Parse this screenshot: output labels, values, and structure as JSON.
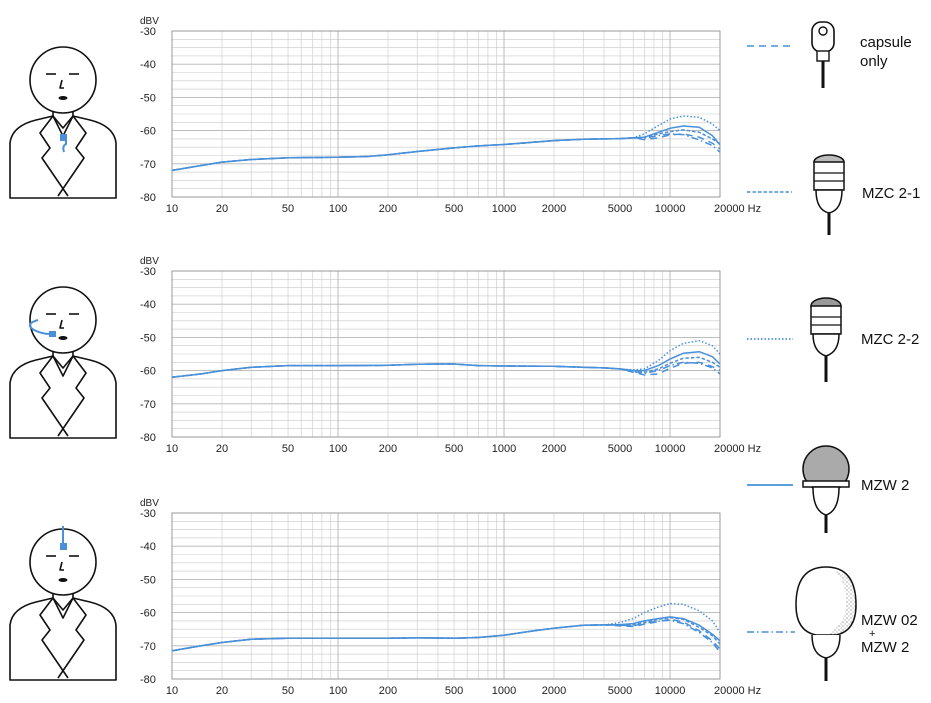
{
  "colors": {
    "curve": "#4a90d9",
    "grid": "#c9c9c9",
    "frame": "#9a9a9a",
    "ink": "#111111"
  },
  "axis": {
    "y_unit": "dBV",
    "x_unit": "Hz",
    "x_ticks": [
      10,
      20,
      50,
      100,
      200,
      500,
      1000,
      2000,
      5000,
      10000,
      20000
    ],
    "x_tick_labels": [
      "10",
      "20",
      "50",
      "100",
      "200",
      "500",
      "1000",
      "2000",
      "5000",
      "10000",
      "20000 Hz"
    ],
    "y_tick_labels": [
      "-30",
      "-40",
      "-50",
      "-60",
      "-70",
      "-80"
    ]
  },
  "legend": [
    {
      "name": "capsule_only",
      "label_lines": [
        "capsule",
        "only"
      ],
      "dash": "dashed",
      "icon": "lavalier-capsule-icon"
    },
    {
      "name": "mzc_2_1",
      "label_lines": [
        "MZC 2-1"
      ],
      "dash": "short-dashed",
      "icon": "mzc-2-1-cap-icon"
    },
    {
      "name": "mzc_2_2",
      "label_lines": [
        "MZC 2-2"
      ],
      "dash": "dotted",
      "icon": "mzc-2-2-cap-icon"
    },
    {
      "name": "mzw_2",
      "label_lines": [
        "MZW 2"
      ],
      "dash": "solid",
      "icon": "mzw-2-windshield-icon"
    },
    {
      "name": "mzw_02_mzw_2",
      "label_lines": [
        "MZW 02",
        "+",
        "MZW 2"
      ],
      "dash": "dash-dot",
      "icon": "mzw-02-fur-windshield-icon"
    }
  ],
  "chart_data": [
    {
      "type": "line",
      "placement": "chest",
      "xscale": "log",
      "xlim": [
        10,
        20000
      ],
      "ylim": [
        -80,
        -30
      ],
      "ylabel": "dBV",
      "xlabel": "Hz",
      "grid": true,
      "base": [
        [
          10,
          -72
        ],
        [
          15,
          -70.5
        ],
        [
          20,
          -69.5
        ],
        [
          30,
          -68.7
        ],
        [
          50,
          -68.2
        ],
        [
          100,
          -68
        ],
        [
          150,
          -67.8
        ],
        [
          200,
          -67.3
        ],
        [
          300,
          -66.3
        ],
        [
          500,
          -65.2
        ],
        [
          700,
          -64.6
        ],
        [
          1000,
          -64.2
        ],
        [
          2000,
          -63
        ],
        [
          3000,
          -62.6
        ],
        [
          5000,
          -62.4
        ],
        [
          6000,
          -62.2
        ]
      ],
      "series": [
        {
          "name": "capsule only",
          "style": "dashed",
          "values": [
            [
              7000,
              -62.7
            ],
            [
              8500,
              -62.2
            ],
            [
              10000,
              -61.3
            ],
            [
              12000,
              -61
            ],
            [
              15000,
              -62
            ],
            [
              18000,
              -63.8
            ],
            [
              20000,
              -65.5
            ]
          ]
        },
        {
          "name": "MZC 2-1",
          "style": "short-dashed",
          "values": [
            [
              7000,
              -62
            ],
            [
              8500,
              -61
            ],
            [
              10000,
              -60.3
            ],
            [
              12000,
              -59.8
            ],
            [
              15000,
              -60.5
            ],
            [
              18000,
              -62.5
            ],
            [
              20000,
              -64
            ]
          ]
        },
        {
          "name": "MZC 2-2",
          "style": "dotted",
          "values": [
            [
              7000,
              -61
            ],
            [
              8500,
              -58.5
            ],
            [
              10000,
              -56.5
            ],
            [
              12000,
              -55.6
            ],
            [
              15000,
              -56
            ],
            [
              18000,
              -58
            ],
            [
              20000,
              -60
            ]
          ]
        },
        {
          "name": "MZW 2",
          "style": "solid",
          "values": [
            [
              7000,
              -62
            ],
            [
              8500,
              -60.5
            ],
            [
              10000,
              -59.3
            ],
            [
              12000,
              -58.6
            ],
            [
              15000,
              -59
            ],
            [
              18000,
              -61.5
            ],
            [
              20000,
              -64.3
            ]
          ]
        },
        {
          "name": "MZW 02 + MZW 2",
          "style": "dash-dot",
          "values": [
            [
              7000,
              -62.3
            ],
            [
              8500,
              -61.5
            ],
            [
              10000,
              -61
            ],
            [
              12000,
              -61.2
            ],
            [
              15000,
              -62.8
            ],
            [
              18000,
              -64.5
            ],
            [
              20000,
              -66.5
            ]
          ]
        }
      ]
    },
    {
      "type": "line",
      "placement": "cheek",
      "xscale": "log",
      "xlim": [
        10,
        20000
      ],
      "ylim": [
        -80,
        -30
      ],
      "ylabel": "dBV",
      "xlabel": "Hz",
      "grid": true,
      "base": [
        [
          10,
          -62
        ],
        [
          15,
          -61
        ],
        [
          20,
          -60
        ],
        [
          30,
          -59
        ],
        [
          50,
          -58.5
        ],
        [
          100,
          -58.5
        ],
        [
          200,
          -58.4
        ],
        [
          300,
          -58.1
        ],
        [
          400,
          -58
        ],
        [
          500,
          -58
        ],
        [
          700,
          -58.5
        ],
        [
          1000,
          -58.6
        ],
        [
          2000,
          -58.7
        ],
        [
          3000,
          -59
        ],
        [
          4000,
          -59.2
        ],
        [
          5000,
          -59.5
        ]
      ],
      "series": [
        {
          "name": "capsule only",
          "style": "dashed",
          "values": [
            [
              6000,
              -60.5
            ],
            [
              7000,
              -61.3
            ],
            [
              8500,
              -61
            ],
            [
              10000,
              -59.3
            ],
            [
              12000,
              -57.8
            ],
            [
              15000,
              -57.5
            ],
            [
              18000,
              -58.8
            ],
            [
              20000,
              -60
            ]
          ]
        },
        {
          "name": "MZC 2-1",
          "style": "short-dashed",
          "values": [
            [
              6000,
              -60
            ],
            [
              7000,
              -60.5
            ],
            [
              8500,
              -59.5
            ],
            [
              10000,
              -57.8
            ],
            [
              12000,
              -56.3
            ],
            [
              15000,
              -56
            ],
            [
              18000,
              -57.5
            ],
            [
              20000,
              -59
            ]
          ]
        },
        {
          "name": "MZC 2-2",
          "style": "dotted",
          "values": [
            [
              6000,
              -59.8
            ],
            [
              7000,
              -59.5
            ],
            [
              8500,
              -57
            ],
            [
              10000,
              -54
            ],
            [
              12000,
              -51.8
            ],
            [
              15000,
              -51
            ],
            [
              18000,
              -52.5
            ],
            [
              20000,
              -55
            ]
          ]
        },
        {
          "name": "MZW 2",
          "style": "solid",
          "values": [
            [
              6000,
              -60
            ],
            [
              7000,
              -60
            ],
            [
              8500,
              -58.5
            ],
            [
              10000,
              -56.5
            ],
            [
              12000,
              -54.8
            ],
            [
              15000,
              -54.3
            ],
            [
              18000,
              -55.8
            ],
            [
              20000,
              -58
            ]
          ]
        },
        {
          "name": "MZW 02 + MZW 2",
          "style": "dash-dot",
          "values": [
            [
              6000,
              -60.3
            ],
            [
              7000,
              -60.8
            ],
            [
              8500,
              -60
            ],
            [
              10000,
              -58.5
            ],
            [
              12000,
              -57.5
            ],
            [
              15000,
              -57.8
            ],
            [
              18000,
              -59.2
            ],
            [
              20000,
              -61
            ]
          ]
        }
      ]
    },
    {
      "type": "line",
      "placement": "forehead",
      "xscale": "log",
      "xlim": [
        10,
        20000
      ],
      "ylim": [
        -80,
        -30
      ],
      "ylabel": "dBV",
      "xlabel": "Hz",
      "grid": true,
      "base": [
        [
          10,
          -71.5
        ],
        [
          15,
          -70
        ],
        [
          20,
          -69
        ],
        [
          30,
          -68
        ],
        [
          50,
          -67.7
        ],
        [
          100,
          -67.7
        ],
        [
          200,
          -67.7
        ],
        [
          300,
          -67.6
        ],
        [
          500,
          -67.7
        ],
        [
          700,
          -67.5
        ],
        [
          1000,
          -66.8
        ],
        [
          1500,
          -65.5
        ],
        [
          2000,
          -64.7
        ],
        [
          3000,
          -63.8
        ],
        [
          4000,
          -63.7
        ]
      ],
      "series": [
        {
          "name": "capsule only",
          "style": "dashed",
          "values": [
            [
              5000,
              -64
            ],
            [
              6000,
              -64.2
            ],
            [
              7000,
              -63.5
            ],
            [
              8500,
              -62.7
            ],
            [
              10000,
              -62
            ],
            [
              12000,
              -62.8
            ],
            [
              15000,
              -65.5
            ],
            [
              18000,
              -68.5
            ],
            [
              20000,
              -71
            ]
          ]
        },
        {
          "name": "MZC 2-1",
          "style": "short-dashed",
          "values": [
            [
              5000,
              -63.8
            ],
            [
              6000,
              -63.7
            ],
            [
              7000,
              -63
            ],
            [
              8500,
              -62
            ],
            [
              10000,
              -61.5
            ],
            [
              12000,
              -62
            ],
            [
              15000,
              -64.5
            ],
            [
              18000,
              -67
            ],
            [
              20000,
              -69.5
            ]
          ]
        },
        {
          "name": "MZC 2-2",
          "style": "dotted",
          "values": [
            [
              5000,
              -63
            ],
            [
              6000,
              -61.8
            ],
            [
              7000,
              -60
            ],
            [
              8500,
              -58.3
            ],
            [
              10000,
              -57.3
            ],
            [
              12000,
              -57.5
            ],
            [
              15000,
              -59.5
            ],
            [
              18000,
              -62.5
            ],
            [
              20000,
              -66
            ]
          ]
        },
        {
          "name": "MZW 2",
          "style": "solid",
          "values": [
            [
              5000,
              -63.6
            ],
            [
              6000,
              -63.3
            ],
            [
              7000,
              -62.5
            ],
            [
              8500,
              -61.8
            ],
            [
              10000,
              -61.3
            ],
            [
              12000,
              -61.8
            ],
            [
              15000,
              -63.8
            ],
            [
              18000,
              -66.5
            ],
            [
              20000,
              -68.5
            ]
          ]
        },
        {
          "name": "MZW 02 + MZW 2",
          "style": "dash-dot",
          "values": [
            [
              5000,
              -63.8
            ],
            [
              6000,
              -64
            ],
            [
              7000,
              -63.2
            ],
            [
              8500,
              -62.6
            ],
            [
              10000,
              -62.3
            ],
            [
              12000,
              -63.3
            ],
            [
              15000,
              -66
            ],
            [
              18000,
              -69
            ],
            [
              20000,
              -72
            ]
          ]
        }
      ]
    }
  ]
}
